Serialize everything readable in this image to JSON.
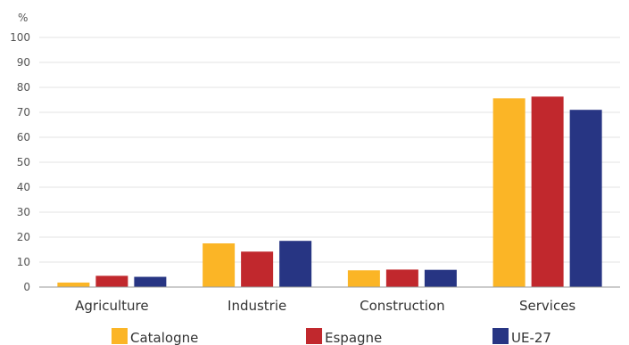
{
  "chart_data": {
    "type": "bar",
    "ylabel": "%",
    "ylim": [
      0,
      100
    ],
    "yticks": [
      0,
      10,
      20,
      30,
      40,
      50,
      60,
      70,
      80,
      90,
      100
    ],
    "grid": true,
    "legend_position": "bottom",
    "categories": [
      "Agriculture",
      "Industrie",
      "Construction",
      "Services"
    ],
    "series": [
      {
        "name": "Catalogne",
        "color": "#fbb526",
        "values": [
          1.8,
          17.5,
          6.7,
          75.6
        ]
      },
      {
        "name": "Espagne",
        "color": "#c1282d",
        "values": [
          4.5,
          14.2,
          7.0,
          76.3
        ]
      },
      {
        "name": "UE-27",
        "color": "#273583",
        "values": [
          4.1,
          18.5,
          6.9,
          71.0
        ]
      }
    ]
  }
}
